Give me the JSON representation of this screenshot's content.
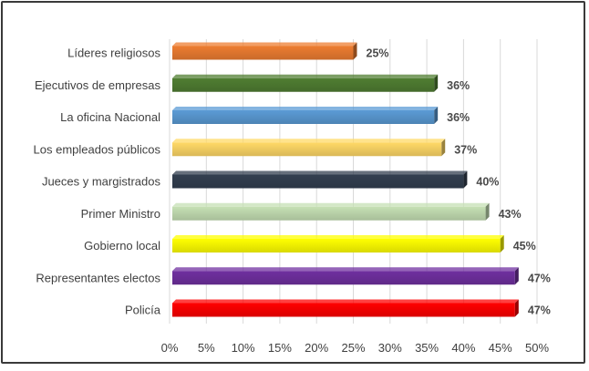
{
  "chart_data": {
    "type": "bar",
    "orientation": "horizontal",
    "style": "3d",
    "categories": [
      "Líderes religiosos",
      "Ejecutivos de empresas",
      "La oficina Nacional",
      "Los empleados públicos",
      "Jueces y margistrados",
      "Primer Ministro",
      "Gobierno local",
      "Representantes electos",
      "Policía"
    ],
    "values": [
      25,
      36,
      36,
      37,
      40,
      43,
      45,
      47,
      47
    ],
    "value_labels": [
      "25%",
      "36%",
      "36%",
      "37%",
      "40%",
      "43%",
      "45%",
      "47%",
      "47%"
    ],
    "colors": [
      "#ed7d31",
      "#507e32",
      "#5b9bd5",
      "#ffd966",
      "#333f50",
      "#c5e0b4",
      "#ffff00",
      "#7030a0",
      "#ff0000"
    ],
    "x_ticks": [
      "0%",
      "5%",
      "10%",
      "15%",
      "20%",
      "25%",
      "30%",
      "35%",
      "40%",
      "45%",
      "50%"
    ],
    "xlim": [
      0,
      50
    ],
    "grid": true,
    "legend": "none",
    "title": "",
    "xlabel": "",
    "ylabel": ""
  }
}
